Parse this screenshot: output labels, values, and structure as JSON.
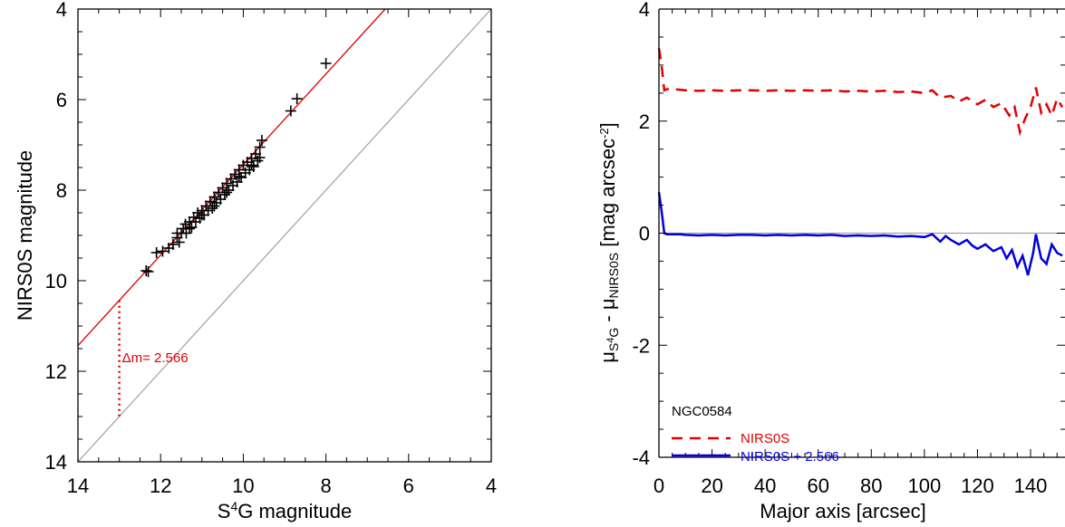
{
  "chart_data": [
    {
      "type": "scatter",
      "xlabel_pre": "S",
      "xlabel_sup": "4",
      "xlabel_post": "G magnitude",
      "ylabel": "NIRS0S magnitude",
      "xlim": [
        14,
        4
      ],
      "ylim": [
        14,
        4
      ],
      "x_ticks": [
        "14",
        "12",
        "10",
        "8",
        "6",
        "4"
      ],
      "x_tick_values": [
        14,
        12,
        10,
        8,
        6,
        4
      ],
      "y_ticks": [
        "4",
        "6",
        "8",
        "10",
        "12",
        "14"
      ],
      "y_tick_values": [
        4,
        6,
        8,
        10,
        12,
        14
      ],
      "offset_line_label": "Δm= 2.566",
      "offset": 2.566,
      "dotted_x": 13.0,
      "colors": {
        "fit": "#e00000",
        "identity": "#a0a0a0",
        "points": "#000000"
      },
      "points": [
        [
          12.35,
          9.78
        ],
        [
          12.3,
          9.8
        ],
        [
          12.1,
          9.38
        ],
        [
          11.95,
          9.35
        ],
        [
          11.8,
          9.28
        ],
        [
          11.7,
          9.2
        ],
        [
          11.6,
          9.05
        ],
        [
          11.55,
          9.15
        ],
        [
          11.5,
          8.95
        ],
        [
          11.45,
          8.85
        ],
        [
          11.4,
          8.75
        ],
        [
          11.38,
          8.95
        ],
        [
          11.3,
          8.7
        ],
        [
          11.25,
          8.82
        ],
        [
          11.2,
          8.6
        ],
        [
          11.15,
          8.7
        ],
        [
          11.1,
          8.5
        ],
        [
          11.05,
          8.62
        ],
        [
          11.0,
          8.45
        ],
        [
          10.95,
          8.55
        ],
        [
          10.9,
          8.35
        ],
        [
          10.85,
          8.45
        ],
        [
          10.8,
          8.25
        ],
        [
          10.75,
          8.4
        ],
        [
          10.7,
          8.15
        ],
        [
          10.65,
          8.28
        ],
        [
          10.6,
          8.05
        ],
        [
          10.55,
          8.2
        ],
        [
          10.5,
          7.95
        ],
        [
          10.45,
          8.1
        ],
        [
          10.4,
          7.85
        ],
        [
          10.35,
          8.0
        ],
        [
          10.3,
          7.75
        ],
        [
          10.25,
          7.9
        ],
        [
          10.2,
          7.65
        ],
        [
          10.15,
          7.82
        ],
        [
          10.1,
          7.55
        ],
        [
          10.05,
          7.72
        ],
        [
          10.0,
          7.45
        ],
        [
          9.95,
          7.62
        ],
        [
          9.9,
          7.38
        ],
        [
          9.85,
          7.55
        ],
        [
          9.8,
          7.3
        ],
        [
          9.75,
          7.48
        ],
        [
          9.7,
          7.2
        ],
        [
          9.65,
          7.35
        ],
        [
          9.6,
          7.05
        ],
        [
          9.55,
          6.9
        ],
        [
          11.6,
          8.95
        ],
        [
          11.3,
          8.85
        ],
        [
          11.0,
          8.55
        ],
        [
          10.7,
          8.35
        ],
        [
          10.4,
          8.05
        ],
        [
          10.1,
          7.7
        ],
        [
          9.8,
          7.45
        ],
        [
          9.6,
          7.28
        ],
        [
          8.85,
          6.25
        ],
        [
          8.7,
          5.98
        ],
        [
          8.0,
          5.2
        ]
      ]
    },
    {
      "type": "line",
      "xlabel": "Major axis [arcsec]",
      "ylabel_pre": "μ",
      "ylabel_sub1": "S",
      "ylabel_sup1": "4",
      "ylabel_sub1b": "G",
      "ylabel_mid": " - μ",
      "ylabel_sub2": "NIRS0S",
      "ylabel_post": " [mag arcsec",
      "ylabel_sup2": "-2",
      "ylabel_end": "]",
      "xlim": [
        0,
        155
      ],
      "ylim": [
        -4,
        4
      ],
      "x_ticks": [
        "0",
        "20",
        "40",
        "60",
        "80",
        "100",
        "120",
        "140"
      ],
      "x_tick_values": [
        0,
        20,
        40,
        60,
        80,
        100,
        120,
        140
      ],
      "y_ticks": [
        "4",
        "2",
        "0",
        "-2",
        "-4"
      ],
      "y_tick_values": [
        4,
        2,
        0,
        -2,
        -4
      ],
      "annotation": "NGC0584",
      "legend_position": "bottom-left",
      "series": [
        {
          "name": "NIRS0S",
          "color": "#e00000",
          "style": "dashed",
          "x": [
            0,
            1,
            2,
            3,
            5,
            8,
            10,
            15,
            20,
            25,
            30,
            35,
            40,
            45,
            50,
            55,
            60,
            65,
            70,
            75,
            80,
            85,
            90,
            95,
            100,
            103,
            106,
            110,
            113,
            116,
            120,
            123,
            126,
            129,
            132,
            134,
            136,
            138,
            140,
            142,
            144,
            146,
            148,
            150,
            152
          ],
          "y": [
            3.3,
            3.0,
            2.55,
            2.57,
            2.57,
            2.56,
            2.55,
            2.54,
            2.55,
            2.54,
            2.55,
            2.55,
            2.54,
            2.55,
            2.54,
            2.55,
            2.54,
            2.55,
            2.53,
            2.54,
            2.53,
            2.54,
            2.52,
            2.53,
            2.5,
            2.55,
            2.42,
            2.45,
            2.35,
            2.42,
            2.3,
            2.38,
            2.25,
            2.32,
            2.1,
            2.25,
            1.8,
            2.05,
            2.25,
            2.6,
            2.15,
            2.3,
            2.1,
            2.4,
            2.25
          ]
        },
        {
          "name": "NIRS0S + 2.566",
          "color": "#0000dd",
          "style": "solid",
          "x": [
            0,
            1,
            2,
            3,
            5,
            8,
            10,
            15,
            20,
            25,
            30,
            35,
            40,
            45,
            50,
            55,
            60,
            65,
            70,
            75,
            80,
            85,
            90,
            95,
            100,
            103,
            106,
            108,
            110,
            113,
            116,
            118,
            120,
            123,
            126,
            129,
            131,
            133,
            135,
            137,
            139,
            141,
            142,
            144,
            146,
            148,
            150,
            152
          ],
          "y": [
            0.73,
            0.4,
            0.0,
            -0.02,
            -0.02,
            -0.02,
            -0.03,
            -0.04,
            -0.03,
            -0.04,
            -0.03,
            -0.03,
            -0.04,
            -0.03,
            -0.04,
            -0.03,
            -0.04,
            -0.03,
            -0.05,
            -0.04,
            -0.05,
            -0.04,
            -0.06,
            -0.05,
            -0.07,
            -0.02,
            -0.15,
            -0.05,
            -0.12,
            -0.2,
            -0.12,
            -0.22,
            -0.28,
            -0.2,
            -0.32,
            -0.25,
            -0.45,
            -0.3,
            -0.6,
            -0.4,
            -0.75,
            -0.35,
            -0.02,
            -0.45,
            -0.55,
            -0.2,
            -0.35,
            -0.4
          ]
        }
      ]
    }
  ]
}
